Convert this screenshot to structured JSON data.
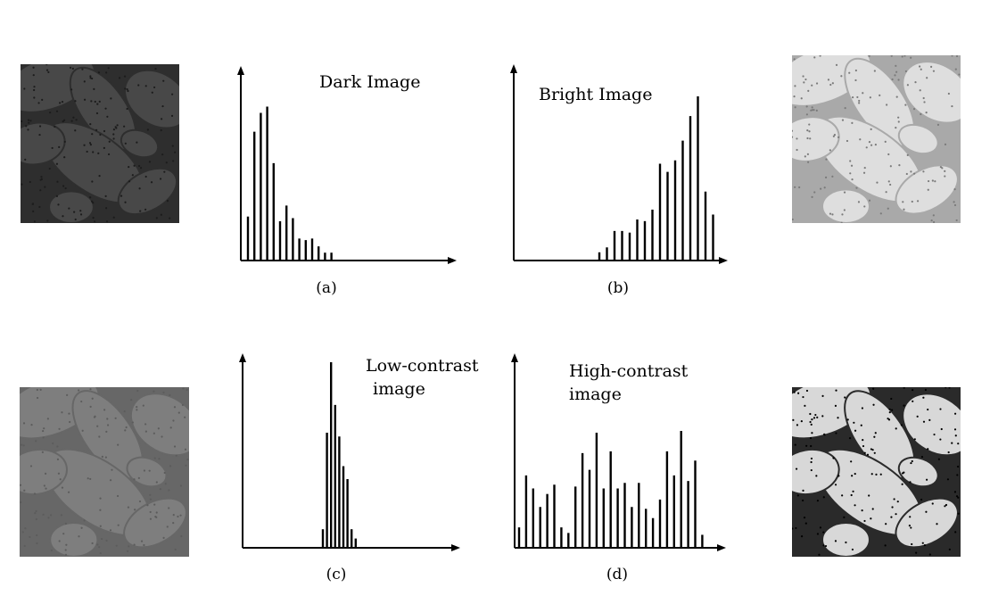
{
  "panels": [
    {
      "title_lines": [
        "Dark Image"
      ],
      "caption": "(a)",
      "values": [
        0.28,
        0.82,
        0.94,
        0.98,
        0.62,
        0.25,
        0.35,
        0.27,
        0.14,
        0.13,
        0.14,
        0.09,
        0.05,
        0.05
      ]
    },
    {
      "title_lines": [
        "Bright Image"
      ],
      "caption": "(b)",
      "values": [
        0.05,
        0.08,
        0.18,
        0.18,
        0.17,
        0.25,
        0.24,
        0.31,
        0.59,
        0.54,
        0.61,
        0.73,
        0.88,
        1.0,
        0.42,
        0.28
      ]
    },
    {
      "title_lines": [
        "Low-contrast",
        "image"
      ],
      "caption": "(c)",
      "values": [
        0.1,
        0.62,
        1.0,
        0.77,
        0.6,
        0.44,
        0.37,
        0.1,
        0.05
      ]
    },
    {
      "title_lines": [
        "High-contrast",
        "image"
      ],
      "caption": "(d)",
      "values": [
        0.11,
        0.39,
        0.32,
        0.22,
        0.29,
        0.34,
        0.11,
        0.08,
        0.33,
        0.51,
        0.42,
        0.62,
        0.32,
        0.52,
        0.32,
        0.35,
        0.22,
        0.35,
        0.21,
        0.16,
        0.26,
        0.52,
        0.39,
        0.63,
        0.36,
        0.47,
        0.07
      ]
    }
  ],
  "images": [
    {
      "name": "dark-pollen-image",
      "tone": "#2e2e2e",
      "leaf": "#484848",
      "dot": "#1c1c1c"
    },
    {
      "name": "bright-pollen-image",
      "tone": "#a9a9a9",
      "leaf": "#dedede",
      "dot": "#7a7a7a"
    },
    {
      "name": "low-contrast-pollen-image",
      "tone": "#676767",
      "leaf": "#7e7e7e",
      "dot": "#5c5c5c"
    },
    {
      "name": "high-contrast-pollen-image",
      "tone": "#2a2a2a",
      "leaf": "#d8d8d8",
      "dot": "#000000"
    }
  ]
}
